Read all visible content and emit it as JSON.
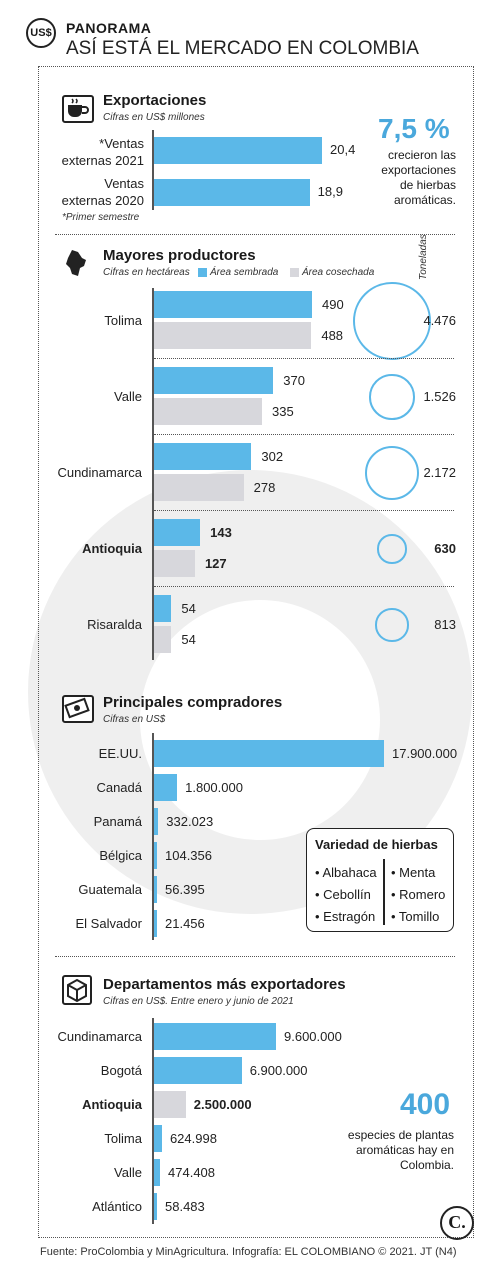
{
  "header": {
    "badge": "US$",
    "kicker": "PANORAMA",
    "title": "ASÍ ESTÁ EL MERCADO EN COLOMBIA"
  },
  "exportaciones": {
    "title": "Exportaciones",
    "subtitle": "Cifras en US$ millones",
    "footnote": "*Primer semestre",
    "icon": "coffee-cup-icon",
    "stat_value": "7,5 %",
    "stat_text": [
      "crecieron las",
      "exportaciones",
      "de hierbas",
      "aromáticas."
    ]
  },
  "productores": {
    "title": "Mayores productores",
    "subtitle": "Cifras en hectáreas",
    "legend_sembrada": "Área sembrada",
    "legend_cosechada": "Área cosechada",
    "toneladas_label": "Toneladas",
    "icon": "colombia-map-icon"
  },
  "compradores": {
    "title": "Principales compradores",
    "subtitle": "Cifras en US$",
    "icon": "money-icon"
  },
  "variedad": {
    "title": "Variedad de hierbas",
    "col1": [
      "• Albahaca",
      "• Cebollín",
      "• Estragón"
    ],
    "col2": [
      "• Menta",
      "• Romero",
      "• Tomillo"
    ]
  },
  "departamentos": {
    "title": "Departamentos más exportadores",
    "subtitle": "Cifras en US$. Entre enero y junio de 2021",
    "icon": "box-icon",
    "stat_value": "400",
    "stat_text": [
      "especies de plantas",
      "aromáticas hay en",
      "Colombia."
    ]
  },
  "logo_letter": "C.",
  "footer": "Fuente: ProColombia y MinAgricultura. Infografía: EL COLOMBIANO © 2021. JT (N4)",
  "colors": {
    "blue": "#5bb8e8",
    "gray": "#d7d7dc",
    "stat": "#4aa8dc"
  },
  "chart_data": [
    {
      "type": "bar",
      "title": "Exportaciones",
      "ylabel": "Cifras en US$ millones",
      "categories": [
        "*Ventas externas 2021",
        "Ventas externas 2020"
      ],
      "values": [
        20.4,
        18.9
      ],
      "labels": [
        "20,4",
        "18,9"
      ]
    },
    {
      "type": "bar",
      "title": "Mayores productores",
      "ylabel": "Cifras en hectáreas",
      "categories": [
        "Tolima",
        "Valle",
        "Cundinamarca",
        "Antioquia",
        "Risaralda"
      ],
      "series": [
        {
          "name": "Área sembrada",
          "values": [
            490,
            370,
            302,
            143,
            54
          ]
        },
        {
          "name": "Área cosechada",
          "values": [
            488,
            335,
            278,
            127,
            54
          ]
        }
      ],
      "toneladas": [
        4476,
        1526,
        2172,
        630,
        813
      ],
      "toneladas_labels": [
        "4.476",
        "1.526",
        "2.172",
        "630",
        "813"
      ],
      "highlight": "Antioquia"
    },
    {
      "type": "bar",
      "title": "Principales compradores",
      "ylabel": "Cifras en US$",
      "categories": [
        "EE.UU.",
        "Canadá",
        "Panamá",
        "Bélgica",
        "Guatemala",
        "El Salvador"
      ],
      "values": [
        17900000,
        1800000,
        332023,
        104356,
        56395,
        21456
      ],
      "labels": [
        "17.900.000",
        "1.800.000",
        "332.023",
        "104.356",
        "56.395",
        "21.456"
      ]
    },
    {
      "type": "bar",
      "title": "Departamentos más exportadores",
      "ylabel": "Cifras en US$. Entre enero y junio de 2021",
      "categories": [
        "Cundinamarca",
        "Bogotá",
        "Antioquia",
        "Tolima",
        "Valle",
        "Atlántico"
      ],
      "values": [
        9600000,
        6900000,
        2500000,
        624998,
        474408,
        58483
      ],
      "labels": [
        "9.600.000",
        "6.900.000",
        "2.500.000",
        "624.998",
        "474.408",
        "58.483"
      ],
      "highlight": "Antioquia"
    }
  ]
}
